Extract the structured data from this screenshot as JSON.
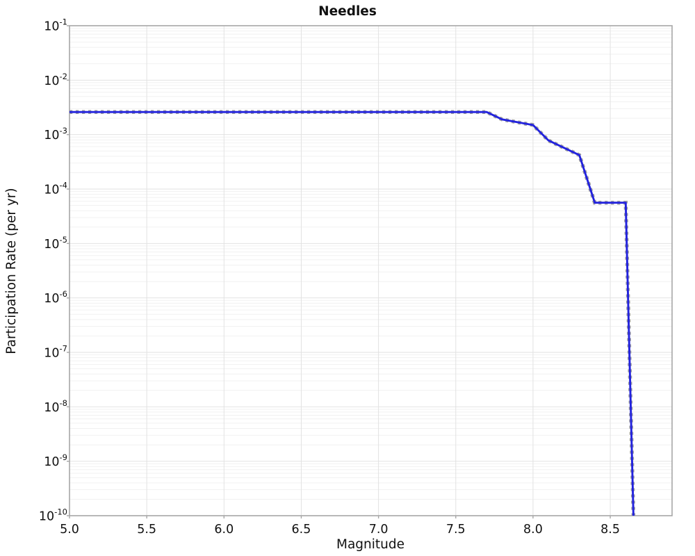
{
  "chart_data": {
    "type": "line",
    "title": "Needles",
    "xlabel": "Magnitude",
    "ylabel": "Participation Rate (per yr)",
    "x_axis": {
      "min": 5.0,
      "max": 8.9,
      "ticks": [
        5.0,
        5.5,
        6.0,
        6.5,
        7.0,
        7.5,
        8.0,
        8.5
      ],
      "tick_labels": [
        "5.0",
        "5.5",
        "6.0",
        "6.5",
        "7.0",
        "7.5",
        "8.0",
        "8.5"
      ]
    },
    "y_axis": {
      "scale": "log",
      "min_exp": -10,
      "max_exp": -1,
      "tick_base": "10",
      "tick_exponents": [
        -1,
        -2,
        -3,
        -4,
        -5,
        -6,
        -7,
        -8,
        -9,
        -10
      ]
    },
    "grid": {
      "major": true,
      "minor_log": true
    },
    "legend": "none",
    "series": [
      {
        "name": "participation-rate",
        "style": "solid blue line overlaid with gray square dashes",
        "line_color": "#2222dd",
        "dash_color": "#a0a0a0",
        "points": [
          {
            "magnitude": 5.0,
            "rate": 0.0026
          },
          {
            "magnitude": 7.7,
            "rate": 0.0026
          },
          {
            "magnitude": 7.8,
            "rate": 0.0019
          },
          {
            "magnitude": 8.0,
            "rate": 0.0015
          },
          {
            "magnitude": 8.1,
            "rate": 0.00078
          },
          {
            "magnitude": 8.3,
            "rate": 0.00042
          },
          {
            "magnitude": 8.4,
            "rate": 5.6e-05
          },
          {
            "magnitude": 8.6,
            "rate": 5.6e-05
          },
          {
            "magnitude": 8.65,
            "rate": 1e-10
          }
        ]
      }
    ]
  }
}
